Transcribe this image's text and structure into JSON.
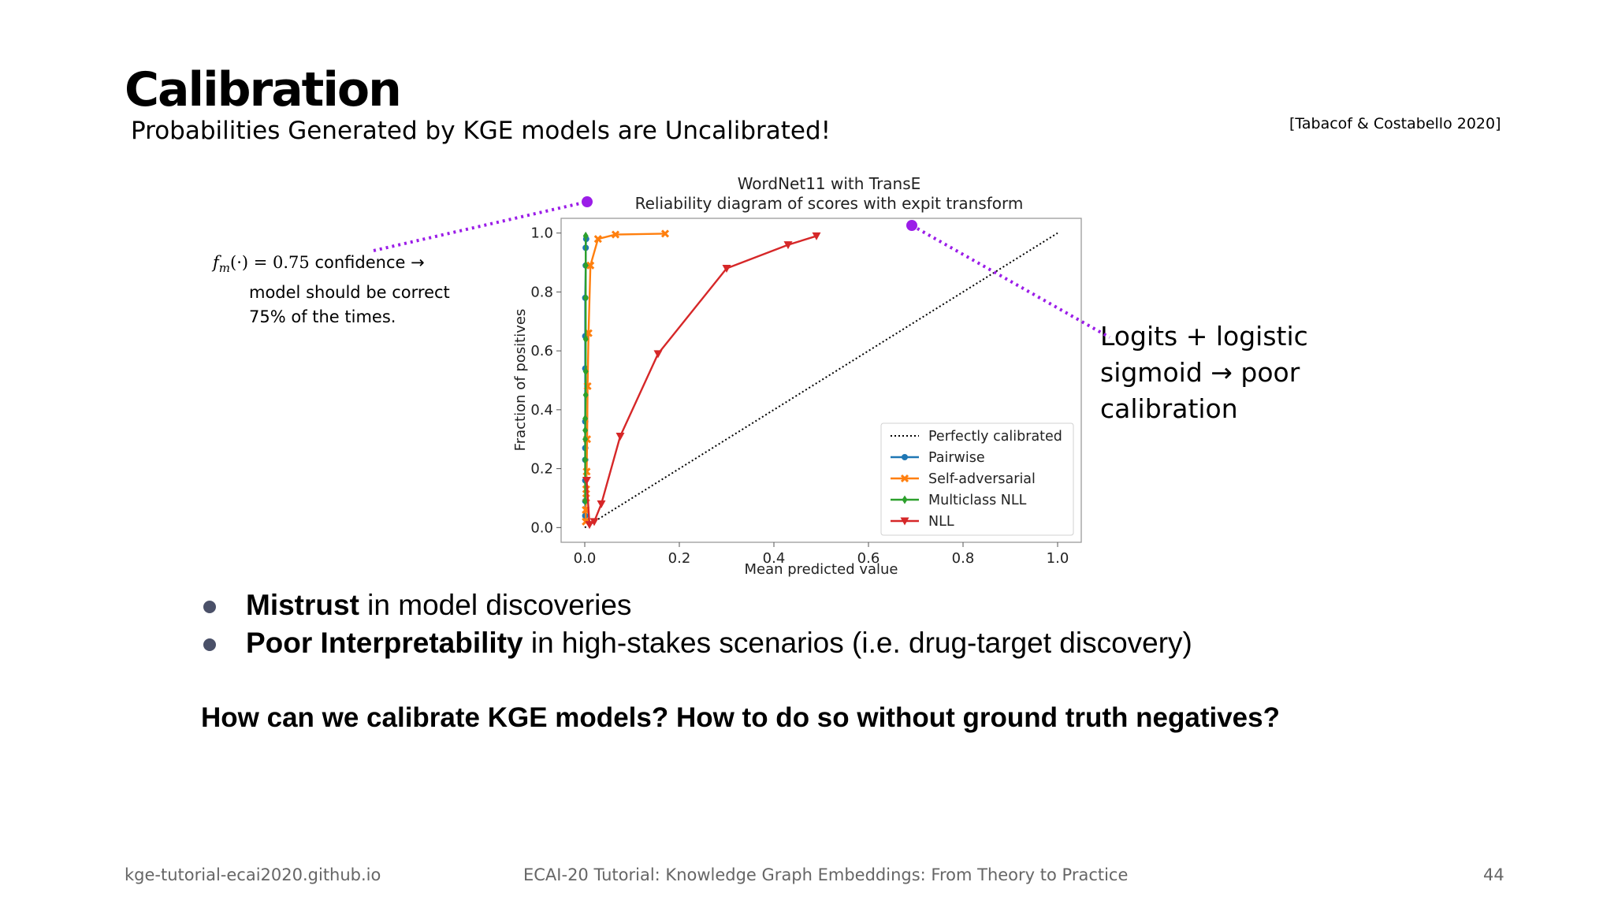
{
  "slide": {
    "title": "Calibration",
    "subtitle": "Probabilities Generated by KGE models are Uncalibrated!",
    "citation": "[Tabacof & Costabello 2020]",
    "note_left": {
      "math": "f",
      "math_sub": "m",
      "math_rest": "(·) = 0.75",
      "rest": " confidence →",
      "line2": "model should be correct",
      "line3": "75% of the times."
    },
    "note_right": {
      "line1": "Logits + logistic",
      "line2": "sigmoid → poor",
      "line3": "calibration"
    },
    "bullets": [
      {
        "bold": "Mistrust",
        "text": " in model discoveries"
      },
      {
        "bold": "Poor Interpretability",
        "text": " in high-stakes scenarios (i.e. drug-target discovery)"
      }
    ],
    "question": "How can we calibrate KGE models? How to do so without ground truth negatives?",
    "footer": {
      "left": "kge-tutorial-ecai2020.github.io",
      "center": "ECAI-20 Tutorial: Knowledge Graph Embeddings: From Theory to Practice",
      "page": "44"
    },
    "annotation_color": "#9b1de8"
  },
  "chart_data": {
    "type": "line",
    "title": "WordNet11 with TransE",
    "subtitle": "Reliability diagram of scores with expit transform",
    "xlabel": "Mean predicted value",
    "ylabel": "Fraction of positives",
    "xlim": [
      -0.05,
      1.05
    ],
    "ylim": [
      -0.05,
      1.05
    ],
    "xticks": [
      "0.0",
      "0.2",
      "0.4",
      "0.6",
      "0.8",
      "1.0"
    ],
    "yticks": [
      "0.0",
      "0.2",
      "0.4",
      "0.6",
      "0.8",
      "1.0"
    ],
    "legend_position": "lower right",
    "series": [
      {
        "name": "Perfectly calibrated",
        "color": "#000000",
        "style": "dotted",
        "marker": "none",
        "x": [
          0,
          1
        ],
        "y": [
          0,
          1
        ]
      },
      {
        "name": "Pairwise",
        "color": "#1f77b4",
        "style": "solid",
        "marker": "circle",
        "x": [
          0.001,
          0.001,
          0.001,
          0.001,
          0.001,
          0.001,
          0.001,
          0.001,
          0.001,
          0.002,
          0.002,
          0.003
        ],
        "y": [
          0.04,
          0.09,
          0.16,
          0.23,
          0.27,
          0.36,
          0.54,
          0.65,
          0.78,
          0.89,
          0.95,
          0.98
        ]
      },
      {
        "name": "Self-adversarial",
        "color": "#ff7f0e",
        "style": "solid",
        "marker": "x",
        "x": [
          0.002,
          0.002,
          0.003,
          0.003,
          0.004,
          0.005,
          0.006,
          0.008,
          0.012,
          0.028,
          0.065,
          0.17
        ],
        "y": [
          0.02,
          0.06,
          0.1,
          0.13,
          0.19,
          0.3,
          0.48,
          0.66,
          0.89,
          0.98,
          0.995,
          0.998
        ]
      },
      {
        "name": "Multiclass NLL",
        "color": "#2ca02c",
        "style": "solid",
        "marker": "diamond",
        "x": [
          0.001,
          0.001,
          0.001,
          0.001,
          0.001,
          0.002,
          0.002,
          0.002,
          0.002,
          0.002,
          0.002
        ],
        "y": [
          0.09,
          0.23,
          0.3,
          0.33,
          0.37,
          0.45,
          0.53,
          0.64,
          0.78,
          0.89,
          0.99
        ]
      },
      {
        "name": "NLL",
        "color": "#d62728",
        "style": "solid",
        "marker": "triangle-down",
        "x": [
          0.004,
          0.01,
          0.02,
          0.035,
          0.075,
          0.155,
          0.3,
          0.43,
          0.49
        ],
        "y": [
          0.16,
          0.01,
          0.02,
          0.08,
          0.31,
          0.59,
          0.88,
          0.96,
          0.99
        ]
      }
    ]
  }
}
